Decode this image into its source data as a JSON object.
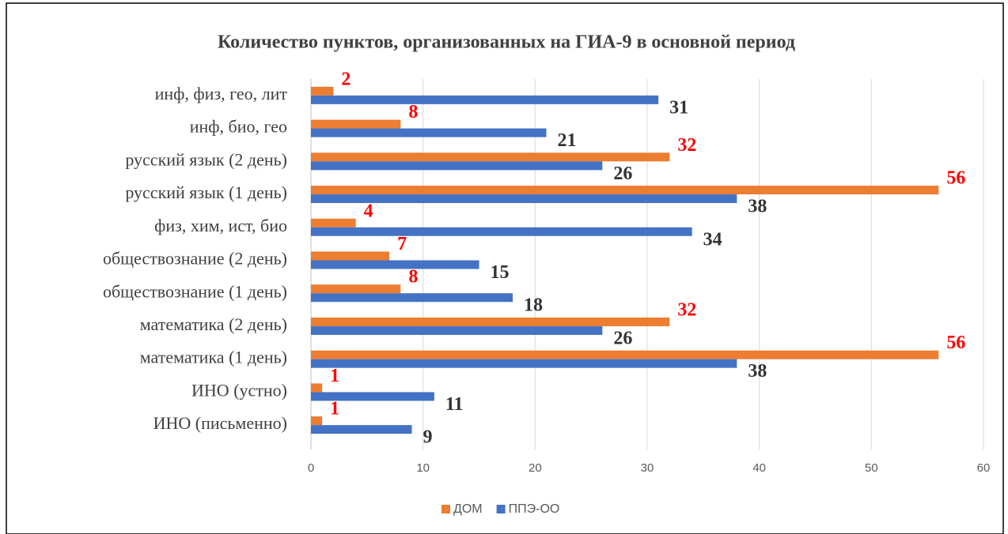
{
  "chart_data": {
    "type": "hbar",
    "title": "Количество пунктов, организованных на ГИА-9 в основной период",
    "categories": [
      "инф, физ, гео, лит",
      "инф, био, гео",
      "русский язык (2 день)",
      "русский язык (1 день)",
      "физ, хим, ист, био",
      "обществознание (2 день)",
      "обществознание (1 день)",
      "математика (2 день)",
      "математика (1 день)",
      "ИНО (устно)",
      "ИНО (письменно)"
    ],
    "series": [
      {
        "name": "ДОМ",
        "color": "#ed7d31",
        "label_color": "#ff0000",
        "values": [
          2,
          8,
          32,
          56,
          4,
          7,
          8,
          32,
          56,
          1,
          1
        ]
      },
      {
        "name": "ППЭ-ОО",
        "color": "#4472c4",
        "label_color": "#333333",
        "values": [
          31,
          21,
          26,
          38,
          34,
          15,
          18,
          26,
          38,
          11,
          9
        ]
      }
    ],
    "xlim": [
      0,
      60
    ],
    "xticks": [
      0,
      10,
      20,
      30,
      40,
      50,
      60
    ],
    "grid": true,
    "legend": "bottom"
  }
}
